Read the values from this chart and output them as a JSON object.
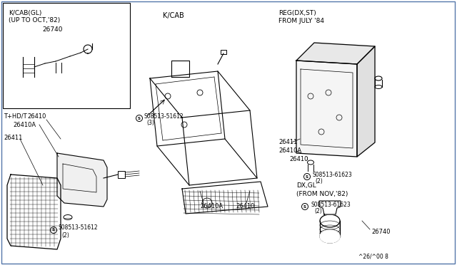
{
  "bg_color": "#ffffff",
  "border_color": "#5577aa",
  "line_color": "#000000",
  "figsize": [
    6.4,
    3.72
  ],
  "dpi": 100,
  "labels": {
    "top_left_box_title1": "K/CAB(GL)",
    "top_left_box_title2": "(UP TO OCT,'82)",
    "top_left_box_part": "26740",
    "center_top": "K/CAB",
    "top_right_title1": "REG(DX,ST)",
    "top_right_title2": "FROM JULY '84",
    "bottom_left_model": "T+HD/T",
    "bottom_left_26410": "26410",
    "bottom_left_26410A": "26410A",
    "bottom_left_26411": "26411",
    "bottom_left_screw1": "S08513-51612",
    "bottom_left_screw1_qty": "(2)",
    "center_screw": "S08513-51612",
    "center_screw_qty": "(3)",
    "center_26410A": "26410A",
    "center_26410": "26410",
    "right_26411": "26411",
    "right_26410A": "26410A",
    "right_26410": "26410",
    "right_screw2": "S08513-61623",
    "right_screw2_qty": "(2)",
    "bottom_right_model1": "DX,GL",
    "bottom_right_model2": "(FROM NOV,'82)",
    "bottom_right_screw": "S08513-61623",
    "bottom_right_screw_qty": "(2)",
    "bottom_right_26740": "26740",
    "part_number": "^26/^00 8"
  }
}
